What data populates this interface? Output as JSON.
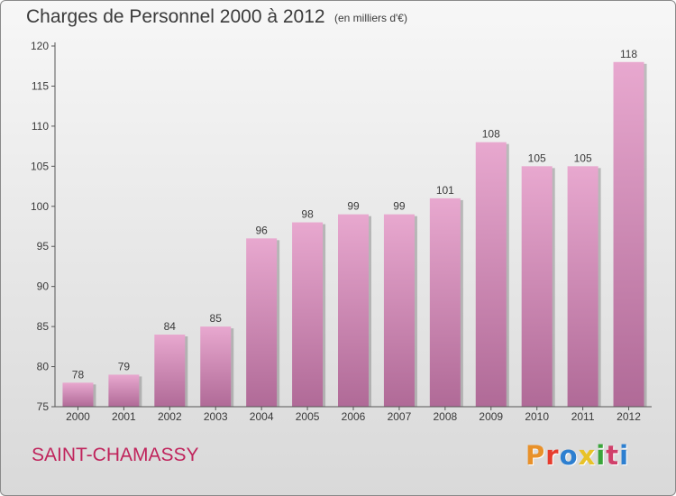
{
  "header": {
    "title": "Charges de Personnel 2000 à 2012",
    "subtitle": "(en milliers d'€)"
  },
  "footer": {
    "location": "SAINT-CHAMASSY",
    "brand": "Proxiti",
    "brand_colors": [
      "#e8912a",
      "#e63c2e",
      "#2d7fd0",
      "#e8c228",
      "#3aa53a",
      "#d0406a",
      "#2d7fd0"
    ]
  },
  "colors": {
    "bar_top": "#e8a8cf",
    "bar_bottom": "#b06a97",
    "bar_shadow": "#7a7a7a",
    "axis": "#555555"
  },
  "chart_data": {
    "type": "bar",
    "title": "Charges de Personnel 2000 à 2012",
    "subtitle": "(en milliers d'€)",
    "xlabel": "",
    "ylabel": "",
    "categories": [
      "2000",
      "2001",
      "2002",
      "2003",
      "2004",
      "2005",
      "2006",
      "2007",
      "2008",
      "2009",
      "2010",
      "2011",
      "2012"
    ],
    "values": [
      78,
      79,
      84,
      85,
      96,
      98,
      99,
      99,
      101,
      108,
      105,
      105,
      118
    ],
    "ylim": [
      75,
      120
    ],
    "yticks": [
      75,
      80,
      85,
      90,
      95,
      100,
      105,
      110,
      115,
      120
    ],
    "grid": false,
    "legend": "none"
  }
}
